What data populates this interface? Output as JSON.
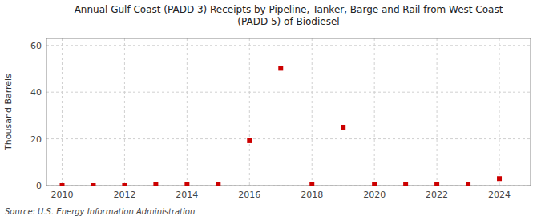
{
  "chart_data": {
    "type": "scatter",
    "title": "Annual Gulf Coast (PADD 3) Receipts by Pipeline, Tanker, Barge and Rail from West Coast\n(PADD 5) of Biodiesel",
    "y_label": "Thousand Barrels",
    "source": "Source: U.S. Energy Information Administration",
    "x": [
      2010,
      2011,
      2012,
      2013,
      2014,
      2015,
      2016,
      2017,
      2018,
      2019,
      2020,
      2021,
      2022,
      2023,
      2024
    ],
    "values": [
      0,
      0,
      0,
      0.4,
      0.4,
      0.4,
      19.2,
      50.2,
      0.4,
      25.0,
      0.4,
      0.4,
      0.4,
      0.4,
      3.0
    ],
    "color": "#cc0000",
    "marker": "square",
    "xlim": [
      2009.5,
      2025.0
    ],
    "ylim": [
      0,
      63
    ],
    "xticks": [
      2010,
      2012,
      2014,
      2016,
      2018,
      2020,
      2022,
      2024
    ],
    "yticks": [
      0,
      20,
      40,
      60
    ],
    "grid": true
  }
}
